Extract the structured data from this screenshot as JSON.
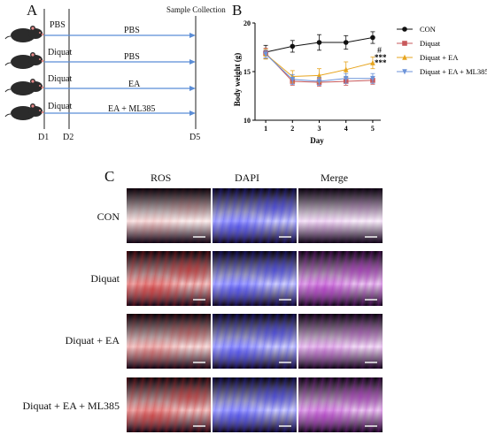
{
  "figure": {
    "panel_a": {
      "letter": "A",
      "header": "Sample Collection",
      "rows": [
        {
          "left": "PBS",
          "right": "PBS"
        },
        {
          "left": "Diquat",
          "right": "PBS"
        },
        {
          "left": "Diquat",
          "right": "EA"
        },
        {
          "left": "Diquat",
          "right": "EA + ML385"
        }
      ],
      "days": [
        "D1",
        "D2",
        "D5"
      ],
      "colors": {
        "arrow": "#5b8dd6",
        "mouse": "#2b2b2b",
        "mouse_ear": "#e88a8a"
      }
    },
    "panel_b": {
      "letter": "B",
      "significance": [
        "#",
        "***",
        "***"
      ]
    },
    "panel_c": {
      "letter": "C",
      "columns": [
        "ROS",
        "DAPI",
        "Merge"
      ],
      "rows": [
        "CON",
        "Diquat",
        "Diquat + EA",
        "Diquat + EA + ML385"
      ],
      "colors": {
        "ros": "#d21e1e",
        "dapi": "#2a2aff",
        "merge": "#b020c8"
      }
    }
  },
  "chart_data": {
    "type": "line",
    "title": "",
    "xlabel": "Day",
    "ylabel": "Body weight (g)",
    "x": [
      1,
      2,
      3,
      4,
      5
    ],
    "xlim": [
      0.6,
      5.3
    ],
    "ylim": [
      10,
      20
    ],
    "yticks": [
      10,
      15,
      20
    ],
    "grid": false,
    "legend_placement": "right",
    "series": [
      {
        "name": "CON",
        "color": "#111111",
        "marker": "circle",
        "values": [
          17.0,
          17.6,
          18.0,
          18.0,
          18.5
        ],
        "errors": [
          0.7,
          0.6,
          0.8,
          0.7,
          0.6
        ]
      },
      {
        "name": "Diquat",
        "color": "#c8595c",
        "marker": "square",
        "values": [
          16.9,
          14.0,
          13.9,
          14.0,
          14.1
        ],
        "errors": [
          0.5,
          0.4,
          0.4,
          0.4,
          0.4
        ]
      },
      {
        "name": "Diquat + EA",
        "color": "#e7a51f",
        "marker": "triangle-up",
        "values": [
          16.8,
          14.5,
          14.6,
          15.2,
          15.9
        ],
        "errors": [
          0.5,
          0.6,
          0.7,
          0.8,
          0.6
        ]
      },
      {
        "name": "Diquat + EA + ML385",
        "color": "#6c93d9",
        "marker": "triangle-down",
        "values": [
          16.8,
          14.2,
          14.0,
          14.3,
          14.3
        ],
        "errors": [
          0.4,
          0.5,
          0.4,
          0.5,
          0.5
        ]
      }
    ]
  }
}
